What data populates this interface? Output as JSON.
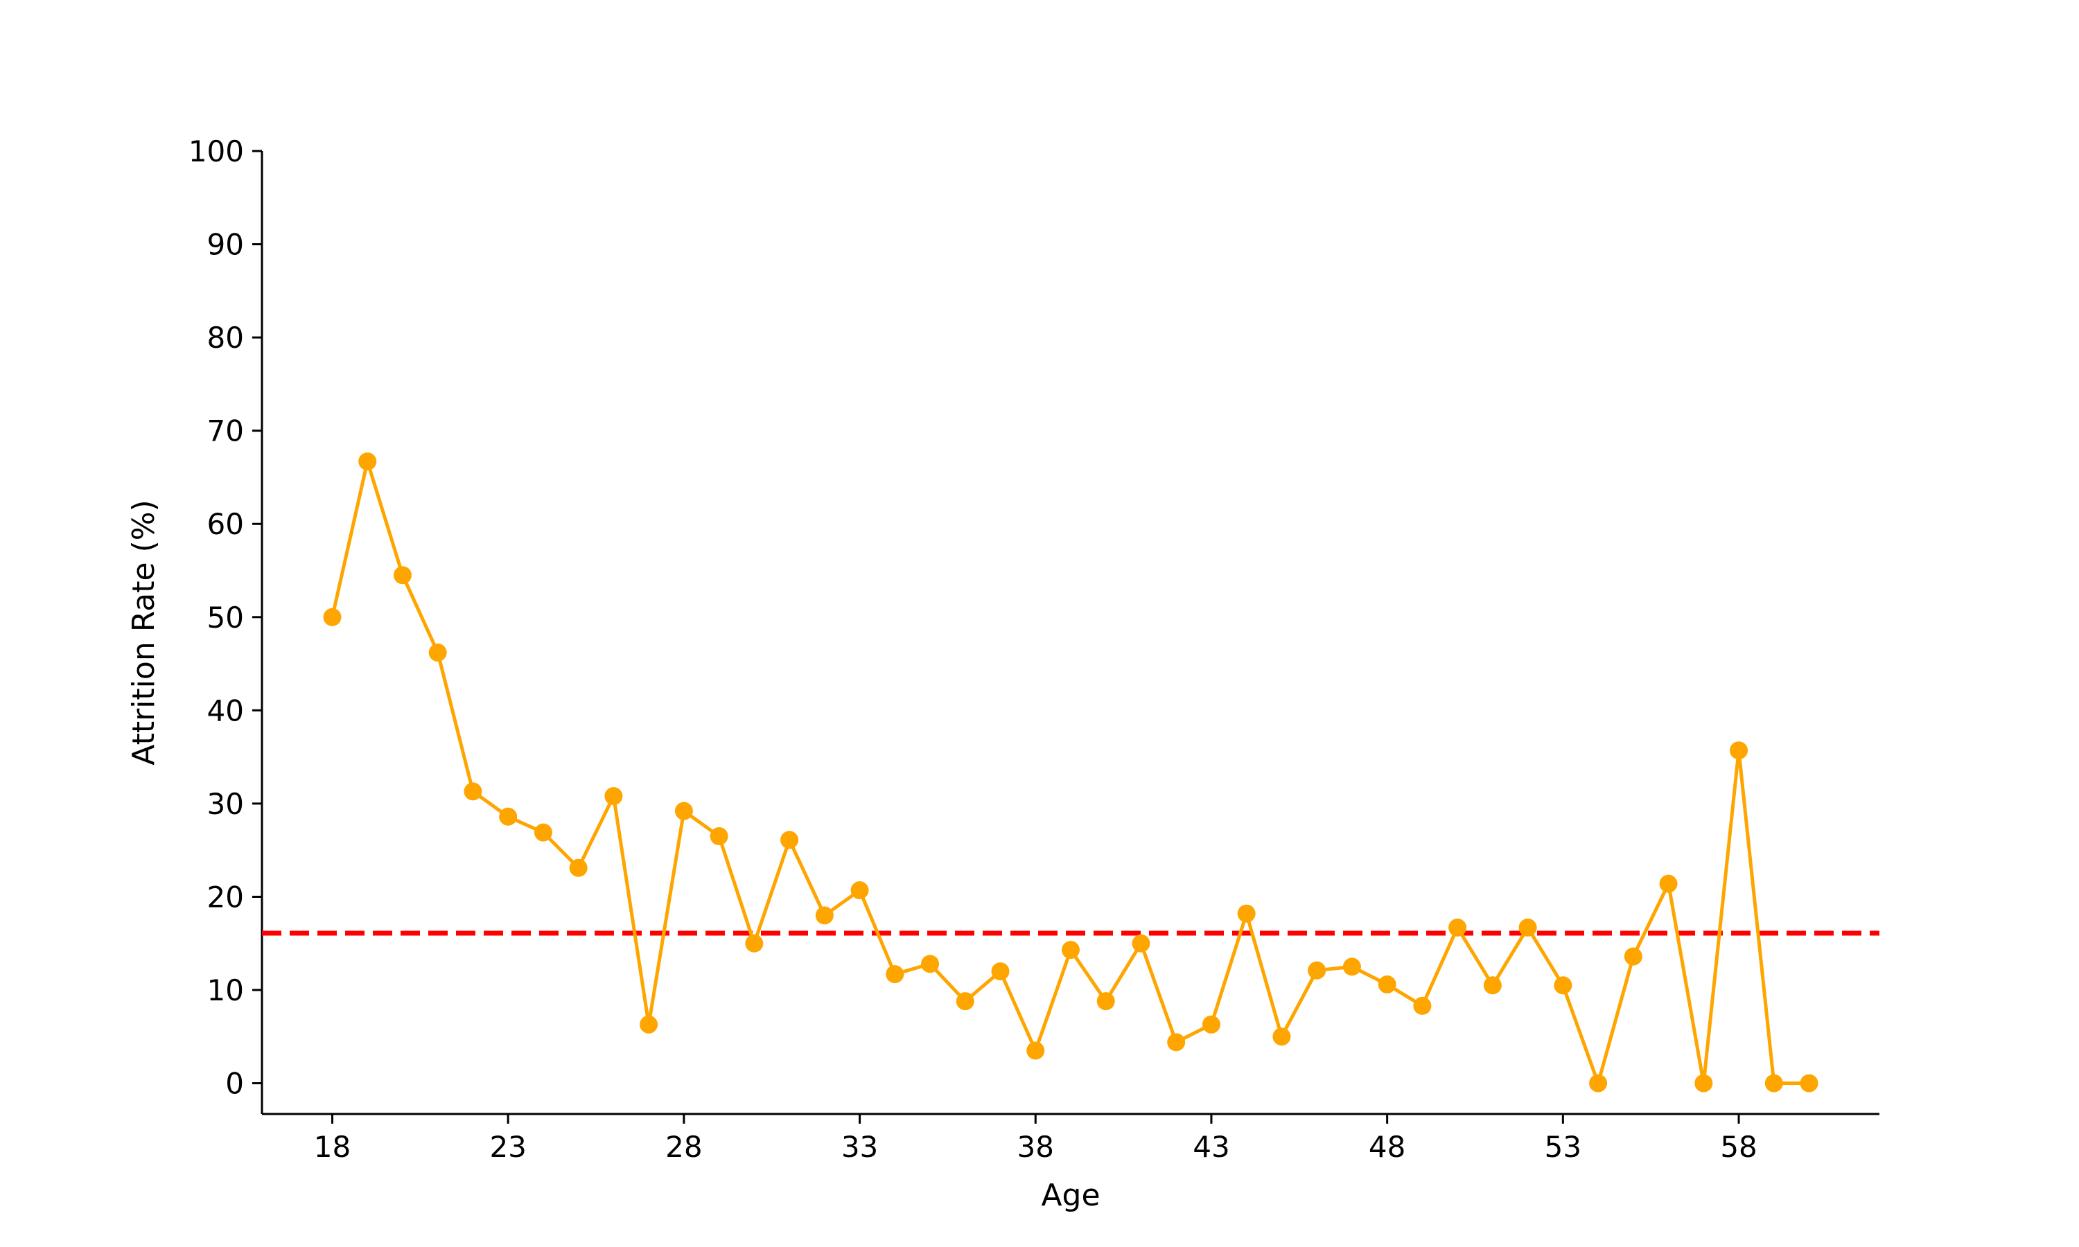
{
  "chart_data": {
    "type": "line",
    "title": "",
    "xlabel": "Age",
    "ylabel": "Attrition Rate (%)",
    "xlim": [
      16,
      62
    ],
    "ylim": [
      -3.3,
      100
    ],
    "xticks": [
      18,
      23,
      28,
      33,
      38,
      43,
      48,
      53,
      58
    ],
    "yticks": [
      0,
      10,
      20,
      30,
      40,
      50,
      60,
      70,
      80,
      90,
      100
    ],
    "grid": false,
    "legend": "none",
    "colors": {
      "line": "#FFA500",
      "reference": "#FF0000",
      "axis": "#000000"
    },
    "x": [
      18,
      19,
      20,
      21,
      22,
      23,
      24,
      25,
      26,
      27,
      28,
      29,
      30,
      31,
      32,
      33,
      34,
      35,
      36,
      37,
      38,
      39,
      40,
      41,
      42,
      43,
      44,
      45,
      46,
      47,
      48,
      49,
      50,
      51,
      52,
      53,
      54,
      55,
      56,
      57,
      58,
      59,
      60
    ],
    "series": [
      {
        "values": [
          50.0,
          66.7,
          54.5,
          46.2,
          31.3,
          28.6,
          26.9,
          23.1,
          30.8,
          6.3,
          29.2,
          26.5,
          15.0,
          26.1,
          18.0,
          20.7,
          11.7,
          12.8,
          8.8,
          12.0,
          3.5,
          14.3,
          8.8,
          15.0,
          4.4,
          6.3,
          18.2,
          5.0,
          12.1,
          12.5,
          10.6,
          8.3,
          16.7,
          10.5,
          16.7,
          10.5,
          0.0,
          13.6,
          21.4,
          0.0,
          35.7,
          0.0,
          0.0
        ]
      }
    ],
    "reference_lines": [
      {
        "y": 16.1,
        "style": "dashed"
      }
    ]
  }
}
